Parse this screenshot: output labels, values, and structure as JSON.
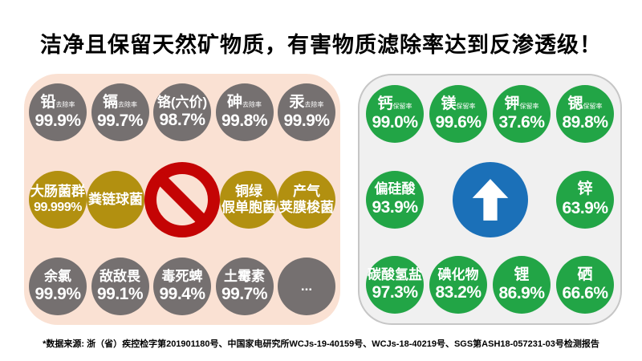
{
  "title": "洁净且保留天然矿物质，有害物质滤除率达到反渗透级！",
  "footnote": "*数据来源: 浙（省）疾控检字第201901180号、中国家电研究所WCJs-19-40159号、WCJs-18-40219号、SGS第ASH18-057231-03号检测报告",
  "colors": {
    "gray": "#757070",
    "gold": "#b29010",
    "green": "#22a546",
    "blue": "#1b70b8",
    "red": "#c40404",
    "panel_left_bg": "#fae1d3",
    "panel_right_bg": "#f0f0f0",
    "panel_right_border": "#c6c6c6"
  },
  "left_panel": {
    "meaning": "harmful substances removal rates",
    "rows": [
      {
        "style": "gray",
        "items": [
          {
            "name": "铅",
            "small": "去除率",
            "value": "99.9%"
          },
          {
            "name": "镉",
            "small": "去除率",
            "value": "99.7%"
          },
          {
            "name": "铬(六价)",
            "value": "98.7%"
          },
          {
            "name": "砷",
            "small": "去除率",
            "value": "99.8%"
          },
          {
            "name": "汞",
            "small": "去除率",
            "value": "99.9%"
          }
        ]
      },
      {
        "style": "gold",
        "items": [
          {
            "name": "大肠菌群",
            "value": "99.999%"
          },
          {
            "name": "粪链球菌"
          },
          {
            "sign": "no-entry"
          },
          {
            "lines": [
              "铜绿",
              "假单胞菌"
            ]
          },
          {
            "lines": [
              "产气",
              "荚膜梭菌"
            ]
          }
        ]
      },
      {
        "style": "gray",
        "items": [
          {
            "name": "余氯",
            "value": "99.9%"
          },
          {
            "name": "敌敌畏",
            "value": "99.1%"
          },
          {
            "name": "毒死蜱",
            "value": "99.4%"
          },
          {
            "name": "土霉素",
            "value": "99.7%"
          },
          {
            "name": "..."
          }
        ]
      }
    ]
  },
  "right_panel": {
    "meaning": "retained minerals retention rates",
    "rows": [
      {
        "style": "green",
        "items": [
          {
            "name": "钙",
            "small": "保留率",
            "value": "99.0%"
          },
          {
            "name": "镁",
            "small": "保留率",
            "value": "99.6%"
          },
          {
            "name": "钾",
            "small": "保留率",
            "value": "37.6%"
          },
          {
            "name": "锶",
            "small": "保留率",
            "value": "89.8%"
          }
        ]
      },
      {
        "style": "green",
        "items": [
          {
            "name": "偏硅酸",
            "value": "93.9%"
          },
          {
            "sign": "arrow-up"
          },
          {
            "name": "锌",
            "value": "63.9%"
          }
        ]
      },
      {
        "style": "green",
        "items": [
          {
            "name": "碳酸氢盐",
            "value": "97.3%"
          },
          {
            "name": "碘化物",
            "value": "83.2%"
          },
          {
            "name": "锂",
            "value": "86.9%"
          },
          {
            "name": "硒",
            "value": "66.6%"
          }
        ]
      }
    ]
  }
}
